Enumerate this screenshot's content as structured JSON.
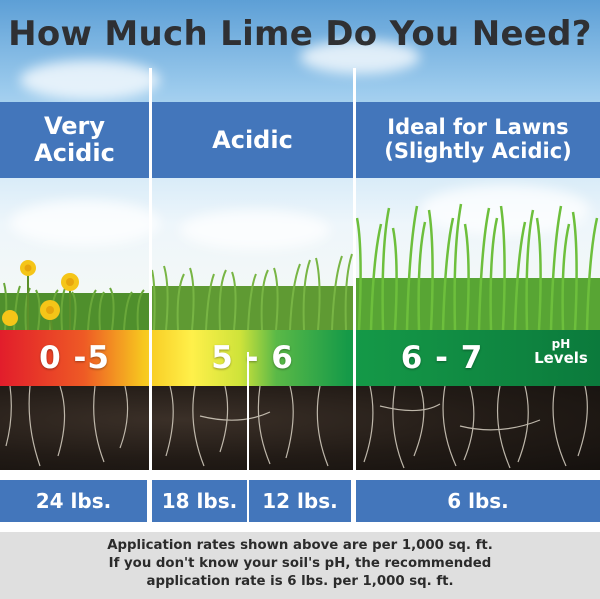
{
  "title": "How Much Lime Do You Need?",
  "columns": [
    {
      "header_lines": [
        "Very",
        "Acidic"
      ],
      "ph_range": "0 -5"
    },
    {
      "header_lines": [
        "Acidic"
      ],
      "ph_range": "5 - 6"
    },
    {
      "header_lines": [
        "Ideal for Lawns",
        "(Slightly Acidic)"
      ],
      "ph_range": "6 - 7"
    }
  ],
  "ph_unit_lines": [
    "pH",
    "Levels"
  ],
  "rates": [
    "24 lbs.",
    "18 lbs.",
    "12 lbs.",
    "6 lbs."
  ],
  "footnote_lines": [
    "Application rates shown above are per 1,000 sq. ft.",
    "If you don't know your soil's pH, the recommended",
    "application rate is 6 lbs. per 1,000 sq. ft."
  ],
  "colors": {
    "header_blue": "#4376bb",
    "title_text": "#2f3033",
    "footnote_bg": "#dfdfdf",
    "ph_gradient": [
      "#e21d2b",
      "#f7c81f",
      "#fff04a",
      "#159a48",
      "#0b7a3c"
    ]
  },
  "icons": [
    "dandelion-flower-icon",
    "grass-blade-icon",
    "soil-root-icon"
  ]
}
